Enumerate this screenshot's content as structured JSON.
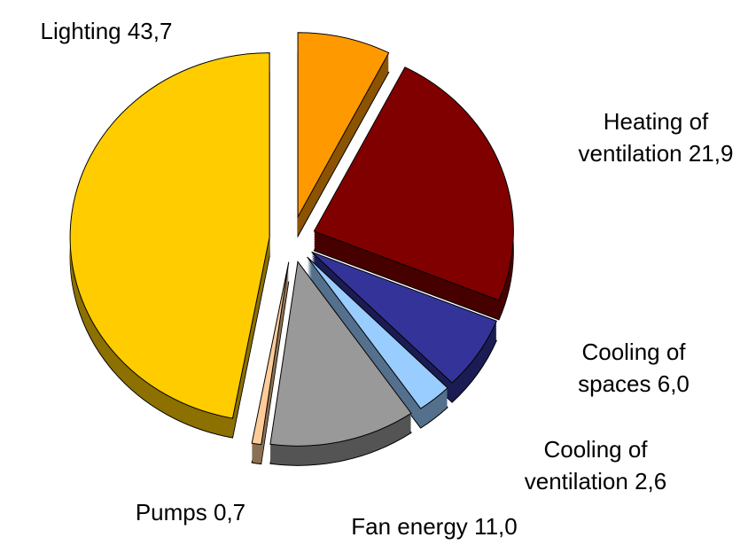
{
  "chart_data": {
    "type": "pie3d",
    "categories": [
      null,
      "Heating of ventilation",
      "Cooling of spaces",
      "Cooling of ventilation",
      "Fan energy",
      "Pumps",
      "Lighting"
    ],
    "values": [
      7.0,
      21.9,
      6.0,
      2.6,
      11.0,
      0.7,
      43.7
    ],
    "value_labels": [
      null,
      "21,9",
      "6,0",
      "2,6",
      "11,0",
      "0,7",
      "43,7"
    ],
    "colors": [
      "#FF9900",
      "#800000",
      "#333399",
      "#99CCFF",
      "#999999",
      "#FFCC99",
      "#FFCC00"
    ]
  }
}
